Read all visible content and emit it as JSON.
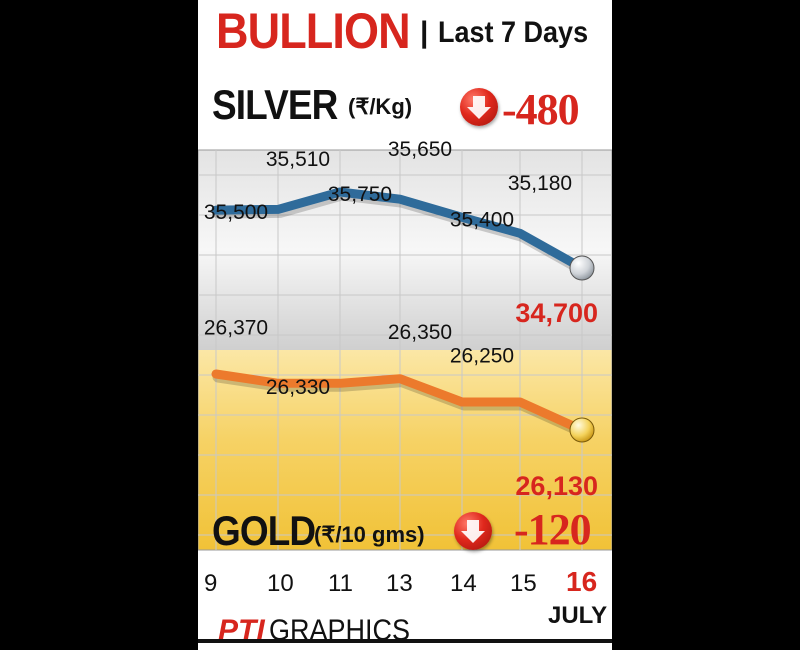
{
  "header": {
    "title": "BULLION",
    "separator": "|",
    "range_label": "Last 7 Days"
  },
  "silver": {
    "name": "SILVER",
    "unit": "(₹/Kg)",
    "change": "-480",
    "latest_label": "34,700"
  },
  "gold": {
    "name": "GOLD",
    "unit": "(₹/10 gms)",
    "change": "-120",
    "latest_label": "26,130"
  },
  "x_labels": [
    "9",
    "10",
    "11",
    "13",
    "14",
    "15",
    "16"
  ],
  "month_label": "JULY",
  "footer": {
    "brand_pti": "PTI",
    "brand_graphics": "GRAPHICS"
  },
  "colors": {
    "title_red": "#d7261e",
    "silver_line": "#2f6b9a",
    "gold_line": "#ec7a2c",
    "grid": "#c8c8c8",
    "silver_fill": "#dcdcdc",
    "gold_fill": "#f3c94a"
  },
  "chart_data": {
    "type": "line",
    "x": [
      "9",
      "10",
      "11",
      "13",
      "14",
      "15",
      "16"
    ],
    "series": [
      {
        "name": "SILVER",
        "values": [
          35500,
          35510,
          35750,
          35650,
          35400,
          35180,
          34700
        ],
        "labels": [
          "35,500",
          "35,510",
          "35,750",
          "35,650",
          "35,400",
          "35,180",
          "34,700"
        ]
      },
      {
        "name": "GOLD",
        "values": [
          26370,
          26330,
          26330,
          26350,
          26250,
          26250,
          26130
        ],
        "labels": [
          "26,370",
          "26,330",
          null,
          "26,350",
          "26,250",
          null,
          "26,130"
        ]
      }
    ],
    "title": "BULLION | Last 7 Days",
    "xlabel": "JULY",
    "grid": true
  }
}
